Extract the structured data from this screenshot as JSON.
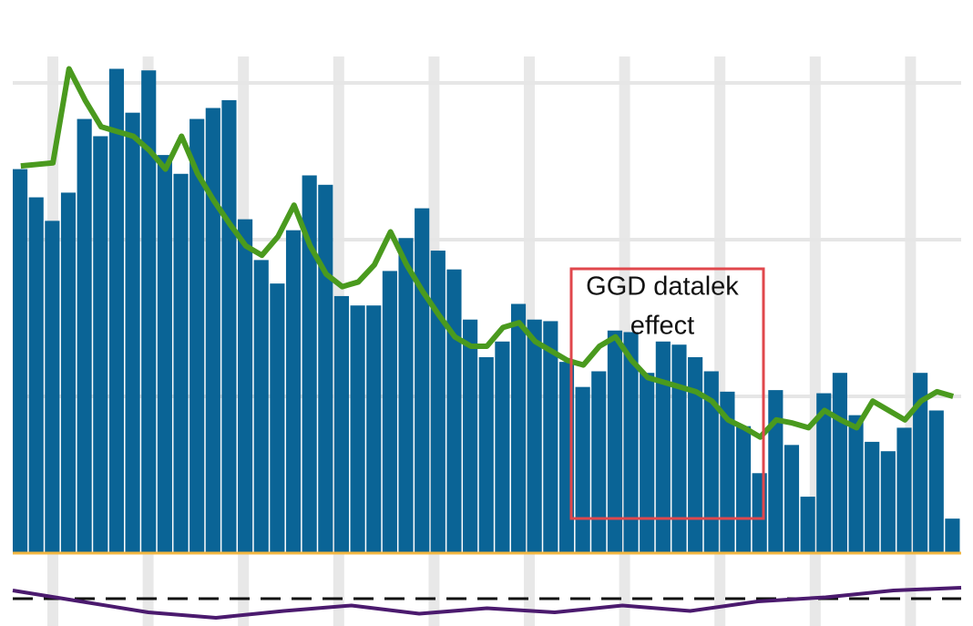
{
  "chart_data": [
    {
      "type": "bar",
      "values": [
        245,
        227,
        212,
        230,
        277,
        266,
        309,
        281,
        308,
        254,
        242,
        277,
        284,
        289,
        213,
        187,
        172,
        206,
        241,
        235,
        164,
        158,
        158,
        180,
        201,
        220,
        193,
        181,
        149,
        125,
        135,
        159,
        149,
        148,
        122,
        106,
        116,
        142,
        141,
        115,
        135,
        133,
        125,
        116,
        103,
        81,
        51,
        104,
        69,
        36,
        102,
        115,
        88,
        71,
        65,
        80,
        115,
        91,
        22
      ],
      "color": "#0a6496",
      "trend": {
        "color": "#4a9a1e",
        "values": [
          247,
          248,
          249,
          309,
          289,
          272,
          269,
          266,
          257,
          245,
          266,
          242,
          225,
          210,
          196,
          190,
          202,
          222,
          196,
          178,
          170,
          173,
          184,
          205,
          184,
          167,
          152,
          138,
          132,
          132,
          144,
          147,
          135,
          129,
          123,
          120,
          132,
          138,
          123,
          112,
          109,
          106,
          103,
          97,
          85,
          80,
          74,
          85,
          83,
          80,
          91,
          85,
          80,
          97,
          91,
          85,
          97,
          103,
          100
        ]
      },
      "ylim": [
        0,
        350
      ],
      "yticks": [
        100,
        200,
        300
      ],
      "grid": true,
      "annotation": [
        "GGD datalek",
        "effect"
      ]
    },
    {
      "type": "line",
      "values": [
        0.6,
        -0.2,
        -1.0,
        -1.4,
        -0.9,
        -0.5,
        -1.1,
        -0.7,
        -1.0,
        -0.5,
        -0.9,
        -0.2,
        0.1,
        0.6,
        0.8
      ],
      "color": "#4b1a6e",
      "reference": 0,
      "ylim": [
        -2,
        2
      ]
    }
  ]
}
